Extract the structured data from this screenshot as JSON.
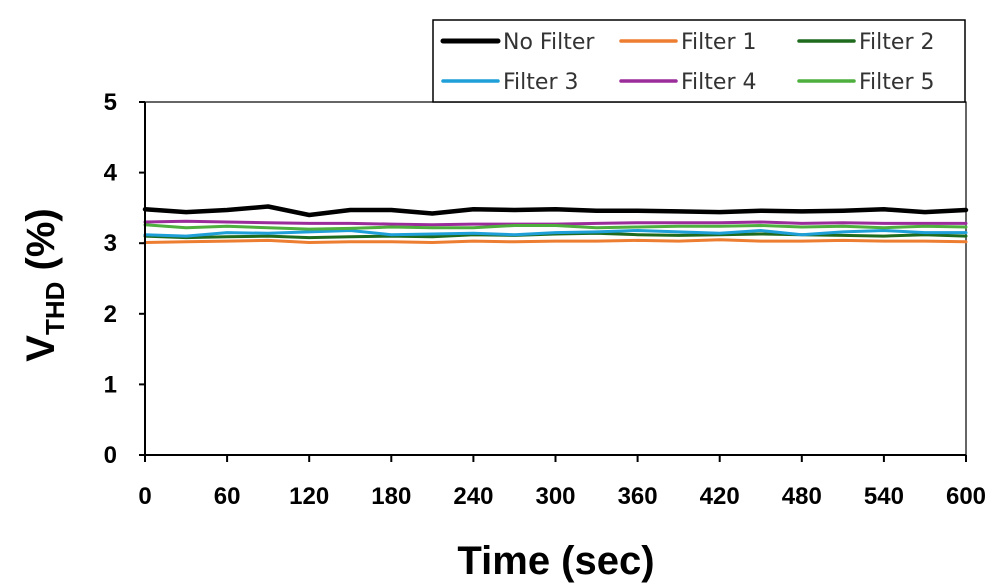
{
  "chart_data": {
    "type": "line",
    "title": "",
    "xlabel": "Time (sec)",
    "ylabel_main": "V",
    "ylabel_sub": "THD",
    "ylabel_tail": " (%)",
    "xlim": [
      0,
      600
    ],
    "ylim": [
      0,
      5
    ],
    "xticks": [
      0,
      60,
      120,
      180,
      240,
      300,
      360,
      420,
      480,
      540,
      600
    ],
    "yticks": [
      0,
      1,
      2,
      3,
      4,
      5
    ],
    "x": [
      0,
      30,
      60,
      90,
      120,
      150,
      180,
      210,
      240,
      270,
      300,
      330,
      360,
      390,
      420,
      450,
      480,
      510,
      540,
      570,
      600
    ],
    "legend_position": "top-right",
    "series": [
      {
        "name": "No Filter",
        "color": "#000000",
        "width": 4.5,
        "values": [
          3.48,
          3.44,
          3.47,
          3.52,
          3.4,
          3.47,
          3.47,
          3.42,
          3.48,
          3.47,
          3.48,
          3.46,
          3.46,
          3.45,
          3.44,
          3.46,
          3.45,
          3.46,
          3.48,
          3.44,
          3.47
        ]
      },
      {
        "name": "Filter 1",
        "color": "#ED7D31",
        "width": 3,
        "values": [
          3.01,
          3.02,
          3.03,
          3.04,
          3.01,
          3.02,
          3.02,
          3.01,
          3.03,
          3.02,
          3.03,
          3.03,
          3.04,
          3.03,
          3.05,
          3.03,
          3.03,
          3.04,
          3.03,
          3.03,
          3.02
        ]
      },
      {
        "name": "Filter 2",
        "color": "#1E6B1E",
        "width": 3,
        "values": [
          3.1,
          3.08,
          3.09,
          3.1,
          3.08,
          3.09,
          3.1,
          3.09,
          3.12,
          3.11,
          3.13,
          3.14,
          3.12,
          3.11,
          3.12,
          3.13,
          3.12,
          3.11,
          3.1,
          3.12,
          3.1
        ]
      },
      {
        "name": "Filter 3",
        "color": "#1E9FD8",
        "width": 3,
        "values": [
          3.12,
          3.1,
          3.15,
          3.14,
          3.16,
          3.18,
          3.12,
          3.13,
          3.14,
          3.12,
          3.15,
          3.16,
          3.18,
          3.16,
          3.14,
          3.18,
          3.12,
          3.16,
          3.18,
          3.15,
          3.15
        ]
      },
      {
        "name": "Filter 4",
        "color": "#9B2D9B",
        "width": 3,
        "values": [
          3.3,
          3.31,
          3.3,
          3.29,
          3.28,
          3.28,
          3.27,
          3.26,
          3.27,
          3.27,
          3.27,
          3.28,
          3.29,
          3.29,
          3.29,
          3.3,
          3.28,
          3.29,
          3.28,
          3.28,
          3.28
        ]
      },
      {
        "name": "Filter 5",
        "color": "#4EAF3E",
        "width": 3,
        "values": [
          3.26,
          3.22,
          3.24,
          3.22,
          3.2,
          3.21,
          3.23,
          3.22,
          3.22,
          3.25,
          3.25,
          3.22,
          3.23,
          3.24,
          3.24,
          3.25,
          3.23,
          3.24,
          3.22,
          3.24,
          3.23
        ]
      }
    ]
  }
}
